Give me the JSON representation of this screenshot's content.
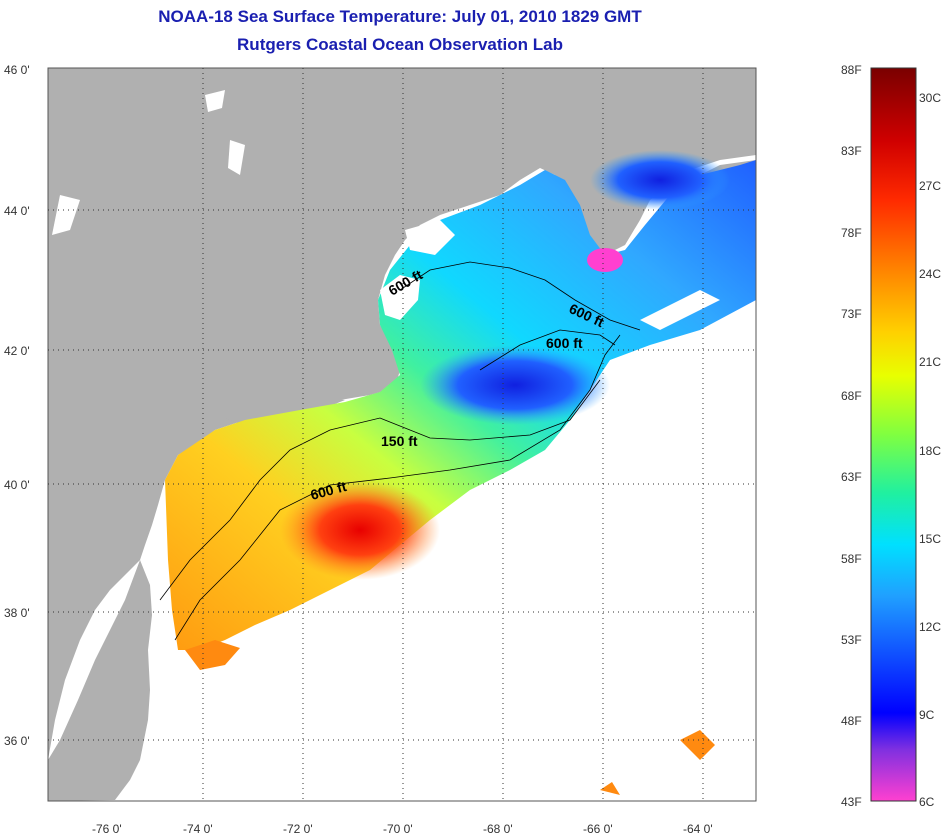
{
  "title": {
    "line1": "NOAA-18 Sea Surface Temperature:  July 01, 2010 1829 GMT",
    "line2": "Rutgers Coastal Ocean Observation Lab"
  },
  "map": {
    "lon_labels": [
      "-76 0'",
      "-74 0'",
      "-72 0'",
      "-70 0'",
      "-68 0'",
      "-66 0'",
      "-64 0'"
    ],
    "lat_labels": [
      "46 0'",
      "44 0'",
      "42 0'",
      "40 0'",
      "38 0'",
      "36 0'"
    ],
    "contour_labels": [
      "600 ft",
      "600 ft",
      "600 ft",
      "150 ft",
      "600 ft"
    ],
    "colors": {
      "land": "#b0b0b0",
      "cloud": "#ffffff",
      "warm": "#ff3b1a",
      "cold": "#1a3cff"
    }
  },
  "colorbar": {
    "f_labels": [
      "88F",
      "83F",
      "78F",
      "73F",
      "68F",
      "63F",
      "58F",
      "53F",
      "48F",
      "43F"
    ],
    "c_labels": [
      "30C",
      "27C",
      "24C",
      "21C",
      "18C",
      "15C",
      "12C",
      "9C",
      "6C"
    ]
  }
}
